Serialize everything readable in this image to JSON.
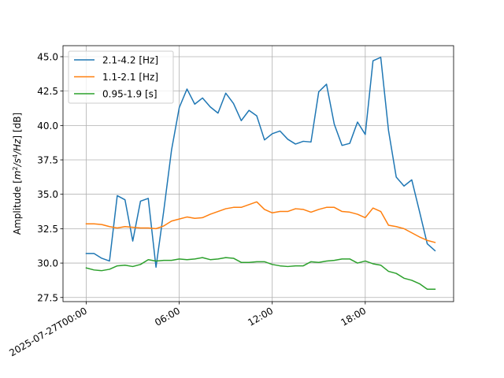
{
  "chart_data": {
    "type": "line",
    "title": "",
    "xlabel": "",
    "ylabel": "Amplitude [$m^2/s^4/Hz$] [dB]",
    "ylabel_parts": {
      "prefix": "Amplitude [",
      "m": "m",
      "two": "2",
      "s": "/s",
      "four": "4",
      "hz": "/Hz",
      "suffix": "] [dB]"
    },
    "x_unit": "hours since 2025-07-27T00:00",
    "xlim": [
      -1.5,
      23.7
    ],
    "ylim": [
      27.2,
      45.8
    ],
    "x_ticks": [
      {
        "value": 0,
        "label": "2025-07-27T00:00"
      },
      {
        "value": 6,
        "label": "06:00"
      },
      {
        "value": 12,
        "label": "12:00"
      },
      {
        "value": 18,
        "label": "18:00"
      }
    ],
    "y_ticks": [
      {
        "value": 27.5,
        "label": "27.5"
      },
      {
        "value": 30.0,
        "label": "30.0"
      },
      {
        "value": 32.5,
        "label": "32.5"
      },
      {
        "value": 35.0,
        "label": "35.0"
      },
      {
        "value": 37.5,
        "label": "37.5"
      },
      {
        "value": 40.0,
        "label": "40.0"
      },
      {
        "value": 42.5,
        "label": "42.5"
      },
      {
        "value": 45.0,
        "label": "45.0"
      }
    ],
    "grid": true,
    "legend_position": "top-left",
    "x": [
      0,
      0.5,
      1,
      1.5,
      2,
      2.5,
      3,
      3.5,
      4,
      4.5,
      5,
      5.5,
      6,
      6.5,
      7,
      7.5,
      8,
      8.5,
      9,
      9.5,
      10,
      10.5,
      11,
      11.5,
      12,
      12.5,
      13,
      13.5,
      14,
      14.5,
      15,
      15.5,
      16,
      16.5,
      17,
      17.5,
      18,
      18.5,
      19,
      19.5,
      20,
      20.5,
      21,
      21.5,
      22,
      22.5
    ],
    "series": [
      {
        "name": "2.1-4.2 [Hz]",
        "color": "#1f77b4",
        "values": [
          30.7,
          30.7,
          30.35,
          30.15,
          34.9,
          34.6,
          31.6,
          34.5,
          34.7,
          29.7,
          33.8,
          38.2,
          41.3,
          42.65,
          41.55,
          42.0,
          41.35,
          40.9,
          42.35,
          41.6,
          40.35,
          41.1,
          40.7,
          38.95,
          39.4,
          39.6,
          39.0,
          38.65,
          38.85,
          38.8,
          42.45,
          43.0,
          40.1,
          38.55,
          38.7,
          40.25,
          39.35,
          44.7,
          44.95,
          39.65,
          36.25,
          35.6,
          36.05,
          33.75,
          31.4,
          30.9
        ]
      },
      {
        "name": "1.1-2.1 [Hz]",
        "color": "#ff7f0e",
        "values": [
          32.85,
          32.85,
          32.8,
          32.65,
          32.55,
          32.65,
          32.6,
          32.55,
          32.55,
          32.5,
          32.7,
          33.05,
          33.2,
          33.35,
          33.25,
          33.3,
          33.55,
          33.75,
          33.95,
          34.05,
          34.05,
          34.25,
          34.45,
          33.9,
          33.65,
          33.75,
          33.75,
          33.95,
          33.9,
          33.7,
          33.9,
          34.05,
          34.05,
          33.75,
          33.7,
          33.55,
          33.3,
          34.0,
          33.75,
          32.75,
          32.65,
          32.5,
          32.2,
          31.9,
          31.65,
          31.5
        ]
      },
      {
        "name": "0.95-1.9 [s]",
        "color": "#2ca02c",
        "values": [
          29.65,
          29.5,
          29.45,
          29.55,
          29.8,
          29.85,
          29.75,
          29.9,
          30.25,
          30.15,
          30.2,
          30.2,
          30.3,
          30.25,
          30.3,
          30.4,
          30.25,
          30.3,
          30.4,
          30.35,
          30.05,
          30.05,
          30.1,
          30.1,
          29.9,
          29.8,
          29.75,
          29.8,
          29.8,
          30.1,
          30.05,
          30.15,
          30.2,
          30.3,
          30.3,
          30.0,
          30.15,
          29.95,
          29.85,
          29.4,
          29.25,
          28.9,
          28.75,
          28.5,
          28.1,
          28.1
        ]
      }
    ]
  }
}
